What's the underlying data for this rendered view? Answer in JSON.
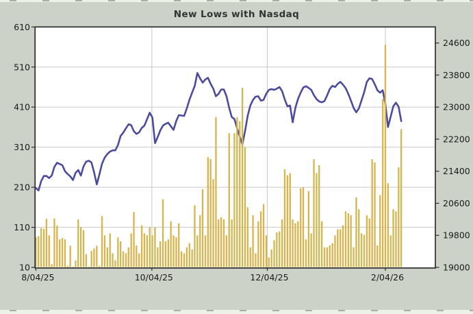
{
  "chart": {
    "title": "New Lows with Nasdaq",
    "colors": {
      "page_background": "#cdd2c8",
      "plot_background": "#ffffff",
      "grid": "#c8c8c8",
      "border": "#2e2e2e",
      "bar": "#d8b44c",
      "line": "#4c4a9c",
      "title_text": "#333333",
      "tick_text": "#1a1a1a",
      "edge_strip": "#eef0ea",
      "edge_marks": "#a8aea0"
    }
  },
  "chart_data": {
    "type": "combo",
    "title": "New Lows with Nasdaq",
    "x_unit": "trading days",
    "x_tick_labels": [
      "8/04/25",
      "10/04/25",
      "12/04/25",
      "2/04/26"
    ],
    "x_tick_positions": [
      0,
      43.8,
      87.4,
      132
    ],
    "left_axis": {
      "min": 10,
      "max": 610,
      "ticks": [
        610,
        510,
        410,
        310,
        210,
        110,
        10
      ],
      "gridline_ticks": [
        510,
        410,
        310,
        210,
        110
      ]
    },
    "right_axis": {
      "min": 19000,
      "max": 25000,
      "ticks": [
        24600,
        23800,
        23000,
        22200,
        21400,
        20600,
        19800,
        19000
      ]
    },
    "legend_position": "none",
    "grid": true,
    "series": [
      {
        "name": "New Lows",
        "type": "bar",
        "axis": "left",
        "color": "#d8b44c",
        "values": [
          85,
          88,
          108,
          106,
          131,
          90,
          18,
          132,
          114,
          80,
          83,
          80,
          14,
          64,
          12,
          27,
          130,
          111,
          103,
          43,
          12,
          51,
          57,
          64,
          14,
          138,
          90,
          60,
          95,
          45,
          28,
          85,
          75,
          50,
          45,
          60,
          95,
          148,
          65,
          45,
          115,
          95,
          90,
          110,
          90,
          110,
          60,
          75,
          180,
          75,
          80,
          125,
          90,
          85,
          120,
          50,
          45,
          60,
          70,
          55,
          165,
          90,
          140,
          205,
          90,
          285,
          280,
          230,
          385,
          130,
          135,
          130,
          90,
          345,
          130,
          345,
          385,
          375,
          458,
          310,
          160,
          60,
          140,
          45,
          125,
          150,
          168,
          90,
          35,
          55,
          78,
          97,
          100,
          130,
          255,
          240,
          245,
          130,
          120,
          125,
          208,
          210,
          80,
          200,
          95,
          280,
          245,
          265,
          125,
          60,
          60,
          65,
          70,
          90,
          105,
          105,
          115,
          150,
          145,
          140,
          60,
          185,
          155,
          95,
          91,
          140,
          132,
          280,
          272,
          65,
          190,
          430,
          565,
          220,
          90,
          155,
          150,
          260,
          355
        ]
      },
      {
        "name": "Nasdaq",
        "type": "line",
        "axis": "right",
        "color": "#4c4a9c",
        "values": [
          20980,
          20920,
          21150,
          21280,
          21280,
          21230,
          21290,
          21510,
          21610,
          21580,
          21550,
          21400,
          21330,
          21270,
          21180,
          21360,
          21430,
          21290,
          21520,
          21640,
          21660,
          21620,
          21370,
          21070,
          21320,
          21590,
          21740,
          21830,
          21890,
          21920,
          21920,
          22050,
          22280,
          22360,
          22470,
          22570,
          22550,
          22400,
          22330,
          22370,
          22480,
          22540,
          22700,
          22860,
          22740,
          22100,
          22250,
          22420,
          22540,
          22580,
          22610,
          22520,
          22430,
          22650,
          22800,
          22790,
          22780,
          22970,
          23180,
          23360,
          23530,
          23850,
          23720,
          23610,
          23690,
          23730,
          23580,
          23460,
          23270,
          23330,
          23440,
          23440,
          23270,
          22980,
          22750,
          22700,
          22470,
          22270,
          22070,
          22400,
          22780,
          23040,
          23180,
          23260,
          23270,
          23160,
          23180,
          23330,
          23430,
          23450,
          23430,
          23460,
          23500,
          23400,
          23190,
          23020,
          23040,
          22620,
          22980,
          23200,
          23360,
          23490,
          23520,
          23480,
          23430,
          23300,
          23200,
          23140,
          23120,
          23150,
          23290,
          23450,
          23530,
          23500,
          23580,
          23630,
          23560,
          23470,
          23330,
          23160,
          22980,
          22870,
          22970,
          23170,
          23370,
          23630,
          23720,
          23700,
          23570,
          23420,
          23360,
          23420,
          23080,
          22500,
          22760,
          23020,
          23110,
          23010,
          22650
        ]
      }
    ]
  }
}
